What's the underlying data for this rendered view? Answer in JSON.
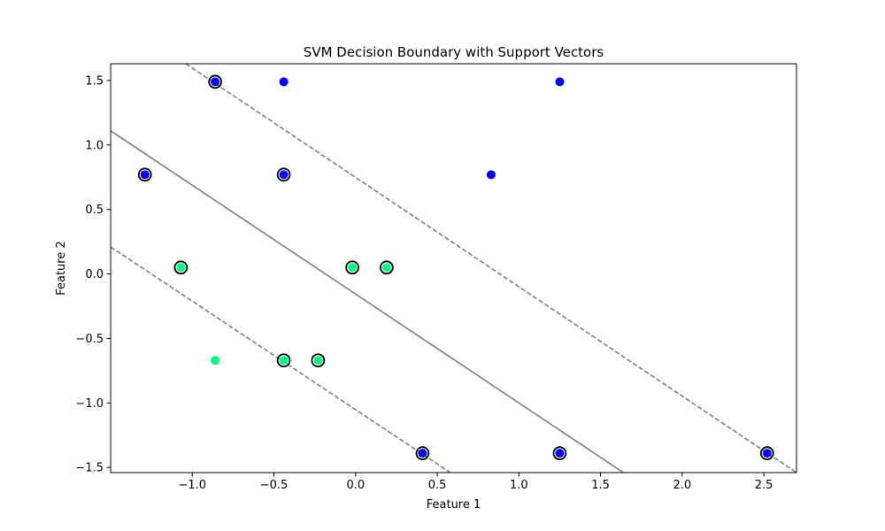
{
  "chart_data": {
    "type": "scatter",
    "title": "SVM Decision Boundary with Support Vectors",
    "xlabel": "Feature 1",
    "ylabel": "Feature 2",
    "xlim": [
      -1.5,
      2.7
    ],
    "ylim": [
      -1.54,
      1.63
    ],
    "xticks": [
      -1.0,
      -0.5,
      0.0,
      0.5,
      1.0,
      1.5,
      2.0,
      2.5
    ],
    "xtick_labels": [
      "−1.0",
      "−0.5",
      "0.0",
      "0.5",
      "1.0",
      "1.5",
      "2.0",
      "2.5"
    ],
    "yticks": [
      -1.5,
      -1.0,
      -0.5,
      0.0,
      0.5,
      1.0,
      1.5
    ],
    "ytick_labels": [
      "−1.5",
      "−1.0",
      "−0.5",
      "0.0",
      "0.5",
      "1.0",
      "1.5"
    ],
    "grid": false,
    "colors": {
      "class_blue": "#0000ff",
      "class_green": "#00ff80",
      "boundary": "#808080",
      "support_vector_edge": "#000000"
    },
    "decision_boundary": {
      "points": [
        [
          -1.5,
          1.11
        ],
        [
          1.64,
          -1.54
        ]
      ]
    },
    "margins": [
      {
        "style": "dashed",
        "points": [
          [
            -1.04,
            1.63
          ],
          [
            2.7,
            -1.54
          ]
        ]
      },
      {
        "style": "dashed",
        "points": [
          [
            -1.5,
            0.21
          ],
          [
            0.58,
            -1.54
          ]
        ]
      }
    ],
    "series": [
      {
        "class": "blue",
        "points": [
          [
            -0.86,
            1.49
          ],
          [
            -0.44,
            1.49
          ],
          [
            1.25,
            1.49
          ],
          [
            -1.29,
            0.77
          ],
          [
            -0.44,
            0.77
          ],
          [
            0.83,
            0.77
          ],
          [
            0.41,
            -1.39
          ],
          [
            1.25,
            -1.39
          ],
          [
            2.52,
            -1.39
          ]
        ]
      },
      {
        "class": "green",
        "points": [
          [
            -1.07,
            0.05
          ],
          [
            -0.02,
            0.05
          ],
          [
            0.19,
            0.05
          ],
          [
            -0.86,
            -0.67
          ],
          [
            -0.44,
            -0.67
          ],
          [
            -0.23,
            -0.67
          ]
        ]
      }
    ],
    "support_vectors": [
      [
        -0.86,
        1.49
      ],
      [
        -1.29,
        0.77
      ],
      [
        -0.44,
        0.77
      ],
      [
        -1.07,
        0.05
      ],
      [
        -0.02,
        0.05
      ],
      [
        0.19,
        0.05
      ],
      [
        -0.44,
        -0.67
      ],
      [
        -0.23,
        -0.67
      ],
      [
        0.41,
        -1.39
      ],
      [
        1.25,
        -1.39
      ],
      [
        2.52,
        -1.39
      ]
    ]
  }
}
